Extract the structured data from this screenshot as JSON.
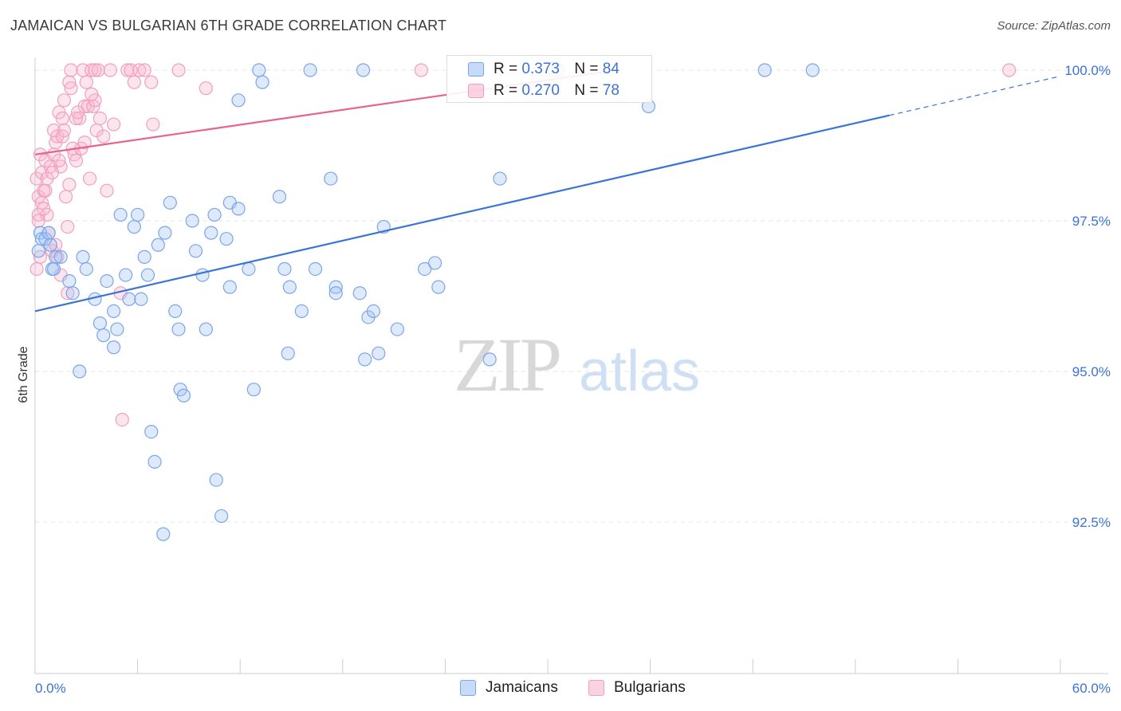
{
  "title": "JAMAICAN VS BULGARIAN 6TH GRADE CORRELATION CHART",
  "source": "Source: ZipAtlas.com",
  "watermark": {
    "zip": "ZIP",
    "atlas": "atlas"
  },
  "colors": {
    "blue": "#3b73d6",
    "blue_fill": "rgba(160,195,245,0.35)",
    "blue_stroke": "#7aa6e8",
    "pink": "#e8628e",
    "pink_fill": "rgba(248,180,205,0.35)",
    "pink_stroke": "#f0a0bd",
    "axis_text": "#3b73d6",
    "grid": "#e6e6e6"
  },
  "legend": {
    "rows": [
      {
        "r_label": "R =",
        "r_value": "0.373",
        "n_label": "N =",
        "n_value": "84"
      },
      {
        "r_label": "R =",
        "r_value": "0.270",
        "n_label": "N =",
        "n_value": "78"
      }
    ]
  },
  "bottom_legend": [
    "Jamaicans",
    "Bulgarians"
  ],
  "chart_data": {
    "type": "scatter",
    "title": "JAMAICAN VS BULGARIAN 6TH GRADE CORRELATION CHART",
    "xlabel": "",
    "ylabel": "6th Grade",
    "xlim": [
      0,
      60
    ],
    "ylim": [
      90.0,
      100.3
    ],
    "x_tick_labels": [
      "0.0%",
      "60.0%"
    ],
    "y_ticks": [
      92.5,
      95.0,
      97.5,
      100.0
    ],
    "y_tick_labels": [
      "92.5%",
      "95.0%",
      "97.5%",
      "100.0%"
    ],
    "grid": true,
    "legend_position": "top-center",
    "series": [
      {
        "name": "Jamaicans",
        "color": "#3b73d6",
        "r": 0.373,
        "n": 84,
        "trend": {
          "x0": 0,
          "y0": 96.0,
          "x1": 50,
          "y1": 99.25,
          "dashed_to_x": 60,
          "dashed_y1": 99.9
        },
        "points": [
          [
            0.3,
            97.3
          ],
          [
            0.4,
            97.2
          ],
          [
            0.6,
            97.2
          ],
          [
            0.8,
            97.3
          ],
          [
            1.0,
            96.7
          ],
          [
            1.2,
            96.9
          ],
          [
            1.5,
            96.9
          ],
          [
            2.0,
            96.5
          ],
          [
            2.2,
            96.3
          ],
          [
            3.0,
            96.7
          ],
          [
            2.8,
            96.9
          ],
          [
            3.5,
            96.2
          ],
          [
            4.2,
            96.5
          ],
          [
            3.8,
            95.8
          ],
          [
            4.0,
            95.6
          ],
          [
            4.6,
            95.4
          ],
          [
            4.8,
            95.7
          ],
          [
            5.0,
            97.6
          ],
          [
            5.3,
            96.6
          ],
          [
            5.5,
            96.2
          ],
          [
            5.8,
            97.4
          ],
          [
            6.0,
            97.6
          ],
          [
            6.2,
            96.2
          ],
          [
            6.4,
            96.9
          ],
          [
            6.6,
            96.6
          ],
          [
            7.2,
            97.1
          ],
          [
            7.6,
            97.3
          ],
          [
            7.9,
            97.8
          ],
          [
            8.2,
            96.0
          ],
          [
            8.4,
            95.7
          ],
          [
            8.5,
            94.7
          ],
          [
            8.7,
            94.6
          ],
          [
            9.2,
            97.5
          ],
          [
            9.4,
            97.0
          ],
          [
            9.8,
            96.6
          ],
          [
            10.0,
            95.7
          ],
          [
            10.3,
            97.3
          ],
          [
            10.5,
            97.6
          ],
          [
            11.2,
            97.2
          ],
          [
            11.4,
            96.4
          ],
          [
            11.4,
            97.8
          ],
          [
            11.9,
            97.7
          ],
          [
            12.5,
            96.7
          ],
          [
            12.8,
            94.7
          ],
          [
            13.1,
            100.0
          ],
          [
            13.3,
            99.8
          ],
          [
            14.3,
            97.9
          ],
          [
            14.6,
            96.7
          ],
          [
            14.8,
            95.3
          ],
          [
            14.9,
            96.4
          ],
          [
            15.6,
            96.0
          ],
          [
            16.1,
            100.0
          ],
          [
            16.4,
            96.7
          ],
          [
            17.3,
            98.2
          ],
          [
            17.6,
            96.4
          ],
          [
            17.6,
            96.3
          ],
          [
            19.0,
            96.3
          ],
          [
            19.2,
            100.0
          ],
          [
            19.3,
            95.2
          ],
          [
            19.5,
            95.9
          ],
          [
            19.8,
            96.0
          ],
          [
            20.1,
            95.3
          ],
          [
            20.4,
            97.4
          ],
          [
            21.2,
            95.7
          ],
          [
            22.8,
            96.7
          ],
          [
            23.4,
            96.8
          ],
          [
            23.6,
            96.4
          ],
          [
            26.6,
            95.2
          ],
          [
            27.2,
            98.2
          ],
          [
            35.9,
            99.4
          ],
          [
            42.7,
            100.0
          ],
          [
            45.5,
            100.0
          ],
          [
            11.9,
            99.5
          ],
          [
            2.6,
            95.0
          ],
          [
            6.8,
            94.0
          ],
          [
            7.0,
            93.5
          ],
          [
            7.5,
            92.3
          ],
          [
            10.6,
            93.2
          ],
          [
            10.9,
            92.6
          ],
          [
            0.9,
            97.1
          ],
          [
            0.2,
            97.0
          ],
          [
            1.1,
            96.7
          ],
          [
            4.6,
            96.0
          ],
          [
            30.6,
            100.0
          ]
        ]
      },
      {
        "name": "Bulgarians",
        "color": "#e8628e",
        "r": 0.27,
        "n": 78,
        "trend": {
          "x0": 0,
          "y0": 98.6,
          "x1": 34,
          "y1": 100.0
        },
        "points": [
          [
            0.1,
            98.2
          ],
          [
            0.2,
            97.9
          ],
          [
            0.3,
            98.6
          ],
          [
            0.4,
            98.3
          ],
          [
            0.5,
            98.0
          ],
          [
            0.6,
            98.5
          ],
          [
            0.7,
            97.6
          ],
          [
            0.8,
            97.3
          ],
          [
            1.0,
            97.0
          ],
          [
            1.1,
            99.0
          ],
          [
            1.2,
            98.8
          ],
          [
            1.3,
            98.9
          ],
          [
            1.4,
            99.3
          ],
          [
            1.5,
            98.4
          ],
          [
            1.6,
            99.2
          ],
          [
            1.7,
            99.5
          ],
          [
            1.8,
            97.9
          ],
          [
            1.9,
            97.4
          ],
          [
            2.0,
            99.8
          ],
          [
            2.1,
            100.0
          ],
          [
            2.2,
            98.7
          ],
          [
            2.3,
            98.6
          ],
          [
            2.4,
            98.5
          ],
          [
            2.6,
            99.2
          ],
          [
            2.8,
            100.0
          ],
          [
            2.9,
            99.4
          ],
          [
            3.1,
            99.4
          ],
          [
            3.2,
            98.2
          ],
          [
            3.3,
            100.0
          ],
          [
            3.4,
            99.4
          ],
          [
            3.5,
            99.5
          ],
          [
            3.6,
            99.0
          ],
          [
            3.7,
            100.0
          ],
          [
            3.8,
            99.2
          ],
          [
            4.0,
            98.9
          ],
          [
            4.2,
            98.0
          ],
          [
            4.4,
            100.0
          ],
          [
            4.6,
            99.1
          ],
          [
            5.0,
            96.3
          ],
          [
            5.1,
            94.2
          ],
          [
            5.4,
            100.0
          ],
          [
            5.6,
            100.0
          ],
          [
            5.8,
            99.8
          ],
          [
            6.1,
            100.0
          ],
          [
            6.4,
            100.0
          ],
          [
            6.8,
            99.8
          ],
          [
            6.9,
            99.1
          ],
          [
            8.4,
            100.0
          ],
          [
            10.0,
            99.7
          ],
          [
            22.6,
            100.0
          ],
          [
            57.0,
            100.0
          ],
          [
            0.2,
            97.6
          ],
          [
            0.3,
            96.9
          ],
          [
            0.4,
            97.8
          ],
          [
            0.6,
            98.0
          ],
          [
            0.9,
            98.4
          ],
          [
            1.2,
            97.1
          ],
          [
            1.3,
            96.9
          ],
          [
            1.5,
            96.6
          ],
          [
            1.6,
            98.9
          ],
          [
            1.9,
            96.3
          ],
          [
            2.1,
            99.7
          ],
          [
            2.4,
            99.2
          ],
          [
            2.5,
            99.3
          ],
          [
            2.7,
            98.7
          ],
          [
            2.9,
            98.8
          ],
          [
            3.0,
            99.8
          ],
          [
            3.3,
            99.6
          ],
          [
            3.5,
            100.0
          ],
          [
            0.1,
            96.7
          ],
          [
            0.2,
            97.5
          ],
          [
            0.5,
            97.7
          ],
          [
            0.7,
            98.2
          ],
          [
            1.0,
            98.3
          ],
          [
            1.1,
            98.6
          ],
          [
            1.4,
            98.5
          ],
          [
            1.7,
            99.0
          ],
          [
            2.0,
            98.1
          ]
        ]
      }
    ]
  }
}
